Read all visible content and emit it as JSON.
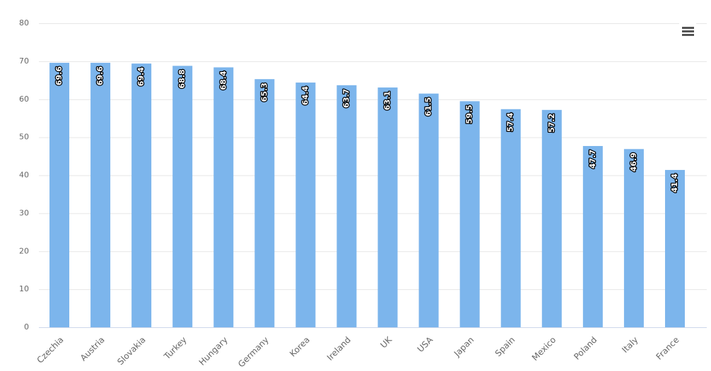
{
  "chart_data": {
    "type": "bar",
    "categories": [
      "Czechia",
      "Austria",
      "Slovakia",
      "Turkey",
      "Hungary",
      "Germany",
      "Korea",
      "Ireland",
      "UK",
      "USA",
      "Japan",
      "Spain",
      "Mexico",
      "Poland",
      "Italy",
      "France"
    ],
    "values": [
      69.6,
      69.6,
      69.4,
      68.8,
      68.4,
      65.3,
      64.4,
      63.7,
      63.1,
      61.5,
      59.5,
      57.4,
      57.2,
      47.7,
      46.9,
      41.4
    ],
    "color": "#7cb5ec",
    "ylim": [
      0,
      80
    ],
    "yticks": [
      0,
      10,
      20,
      30,
      40,
      50,
      60,
      70,
      80
    ],
    "grid": true
  }
}
